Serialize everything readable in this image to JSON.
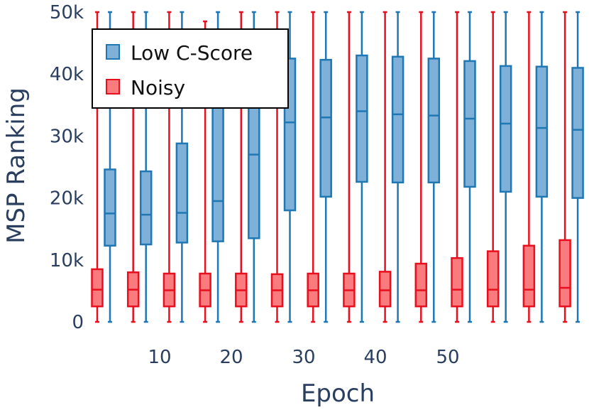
{
  "chart_data": {
    "type": "box",
    "xlabel": "Epoch",
    "ylabel": "MSP Ranking",
    "ylim": [
      0,
      50000
    ],
    "yticks": [
      0,
      10000,
      20000,
      30000,
      40000,
      50000
    ],
    "ytick_labels": [
      "0",
      "10k",
      "20k",
      "30k",
      "40k",
      "50k"
    ],
    "xticks": [
      10,
      20,
      30,
      40,
      50
    ],
    "xtick_labels": [
      "10",
      "20",
      "30",
      "40",
      "50"
    ],
    "xlim": [
      0.5,
      57.5
    ],
    "grid": false,
    "legend_position": "top-left",
    "series": [
      {
        "name": "Low C-Score",
        "color": "#1f77b4",
        "fill": "#7fb0d8",
        "boxes": [
          {
            "x": 4,
            "min": 0,
            "q1": 12300,
            "median": 17500,
            "q3": 24600,
            "max": 50000
          },
          {
            "x": 9,
            "min": 0,
            "q1": 12500,
            "median": 17300,
            "q3": 24300,
            "max": 50000
          },
          {
            "x": 14,
            "min": 0,
            "q1": 12800,
            "median": 17600,
            "q3": 28800,
            "max": 50000
          },
          {
            "x": 19,
            "min": 0,
            "q1": 13000,
            "median": 19500,
            "q3": 35000,
            "max": 50000
          },
          {
            "x": 24,
            "min": 0,
            "q1": 13500,
            "median": 27000,
            "q3": 38000,
            "max": 50000
          },
          {
            "x": 29,
            "min": 0,
            "q1": 18000,
            "median": 32200,
            "q3": 42500,
            "max": 50000
          },
          {
            "x": 34,
            "min": 0,
            "q1": 20200,
            "median": 33000,
            "q3": 42300,
            "max": 50000
          },
          {
            "x": 39,
            "min": 0,
            "q1": 22600,
            "median": 34000,
            "q3": 43000,
            "max": 50000
          },
          {
            "x": 44,
            "min": 0,
            "q1": 22500,
            "median": 33500,
            "q3": 42800,
            "max": 50000
          },
          {
            "x": 49,
            "min": 0,
            "q1": 22500,
            "median": 33300,
            "q3": 42500,
            "max": 50000
          },
          {
            "x": 54,
            "min": 0,
            "q1": 21800,
            "median": 32800,
            "q3": 42100,
            "max": 50000
          },
          {
            "x": 59,
            "min": 0,
            "q1": 21000,
            "median": 32000,
            "q3": 41300,
            "max": 50000
          },
          {
            "x": 64,
            "min": 0,
            "q1": 20200,
            "median": 31300,
            "q3": 41200,
            "max": 50000
          },
          {
            "x": 69,
            "min": 0,
            "q1": 20000,
            "median": 31000,
            "q3": 41000,
            "max": 50000
          }
        ]
      },
      {
        "name": "Noisy",
        "color": "#e8101e",
        "fill": "#f97b7e",
        "boxes": [
          {
            "x": 3,
            "min": 0,
            "q1": 2500,
            "median": 5200,
            "q3": 8500,
            "max": 50000
          },
          {
            "x": 8,
            "min": 0,
            "q1": 2500,
            "median": 5200,
            "q3": 8000,
            "max": 50000
          },
          {
            "x": 13,
            "min": 0,
            "q1": 2500,
            "median": 5100,
            "q3": 7800,
            "max": 50000
          },
          {
            "x": 18,
            "min": 0,
            "q1": 2500,
            "median": 5100,
            "q3": 7800,
            "max": 48500
          },
          {
            "x": 23,
            "min": 0,
            "q1": 2500,
            "median": 5100,
            "q3": 7800,
            "max": 50000
          },
          {
            "x": 28,
            "min": 0,
            "q1": 2500,
            "median": 5100,
            "q3": 7700,
            "max": 50000
          },
          {
            "x": 33,
            "min": 0,
            "q1": 2500,
            "median": 5100,
            "q3": 7800,
            "max": 50000
          },
          {
            "x": 38,
            "min": 0,
            "q1": 2500,
            "median": 5100,
            "q3": 7800,
            "max": 50000
          },
          {
            "x": 43,
            "min": 0,
            "q1": 2500,
            "median": 5100,
            "q3": 8100,
            "max": 50000
          },
          {
            "x": 48,
            "min": 0,
            "q1": 2500,
            "median": 5100,
            "q3": 9400,
            "max": 50000
          },
          {
            "x": 53,
            "min": 0,
            "q1": 2500,
            "median": 5200,
            "q3": 10300,
            "max": 50000
          },
          {
            "x": 58,
            "min": 0,
            "q1": 2500,
            "median": 5200,
            "q3": 11400,
            "max": 50000
          },
          {
            "x": 63,
            "min": 0,
            "q1": 2500,
            "median": 5200,
            "q3": 12300,
            "max": 50000
          },
          {
            "x": 68,
            "min": 0,
            "q1": 2500,
            "median": 5500,
            "q3": 13200,
            "max": 50000
          }
        ]
      }
    ]
  }
}
